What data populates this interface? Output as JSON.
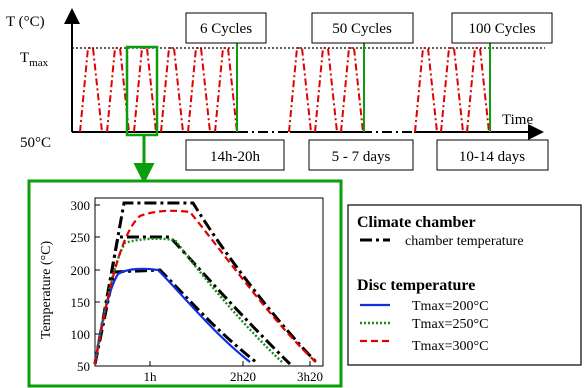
{
  "top": {
    "y_axis_label": "T (°C)",
    "tmax_label_main": "T",
    "tmax_label_sub": "max",
    "base_label": "50°C",
    "time_label": "Time",
    "cycle_labels": [
      "6 Cycles",
      "50 Cycles",
      "100 Cycles"
    ],
    "duration_labels": [
      "14h-20h",
      "5 - 7 days",
      "10-14 days"
    ]
  },
  "zoom": {
    "ylabel": "Temperature (°C)",
    "y_ticks": [
      "300",
      "250",
      "200",
      "150",
      "100",
      "50"
    ],
    "x_ticks": [
      "1h",
      "2h20",
      "3h20"
    ]
  },
  "legend": {
    "climate_title": "Climate chamber",
    "chamber_label": "chamber temperature",
    "disc_title": "Disc temperature",
    "series": [
      "Tmax=200°C",
      "Tmax=250°C",
      "Tmax=300°C"
    ]
  },
  "colors": {
    "cycle_red": "#e00000",
    "green_frame": "#0a9e0a",
    "blue": "#1030e0",
    "dotted_green": "#1a8a1a",
    "red_dashed": "#e00000",
    "black": "#000000"
  },
  "chart_data": {
    "type": "line",
    "ylabel": "Temperature (°C)",
    "ylim": [
      50,
      300
    ],
    "x_ticks": [
      "1h",
      "2h20",
      "3h20"
    ],
    "series": [
      {
        "name": "Tmax=200°C",
        "peak": 200
      },
      {
        "name": "Tmax=250°C",
        "peak": 250
      },
      {
        "name": "Tmax=300°C",
        "peak": 300
      }
    ]
  }
}
